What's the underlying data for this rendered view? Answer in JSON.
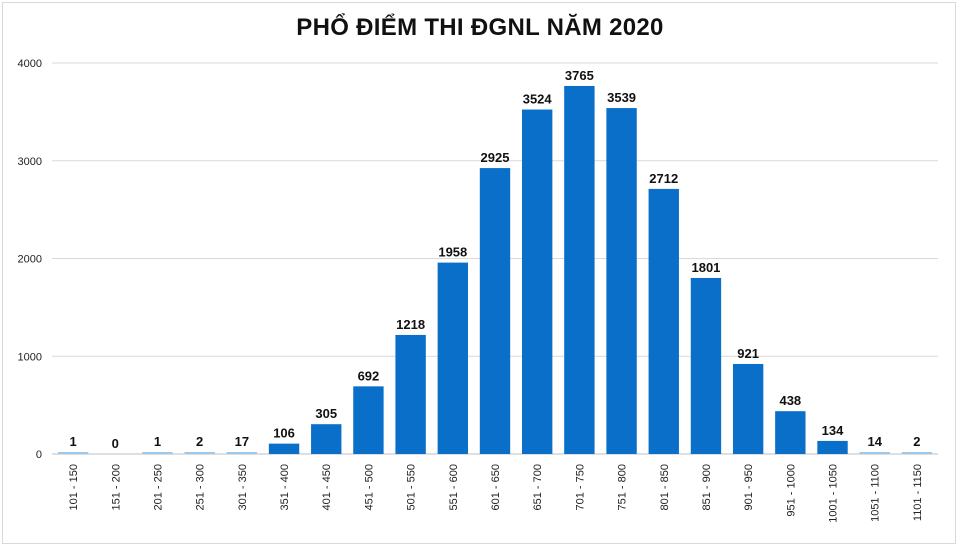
{
  "chart_data": {
    "type": "bar",
    "title": "PHỔ ĐIỂM THI ĐGNL NĂM 2020",
    "xlabel": "",
    "ylabel": "",
    "ylim": [
      0,
      4000
    ],
    "yticks": [
      0,
      1000,
      2000,
      3000,
      4000
    ],
    "grid": true,
    "categories": [
      "101 - 150",
      "151 - 200",
      "201 - 250",
      "251 - 300",
      "301 - 350",
      "351 - 400",
      "401 - 450",
      "451 - 500",
      "501 - 550",
      "551 - 600",
      "601 - 650",
      "651 - 700",
      "701 - 750",
      "751 - 800",
      "801 - 850",
      "851 - 900",
      "901 - 950",
      "951 - 1000",
      "1001 - 1050",
      "1051 - 1100",
      "1101 - 1150"
    ],
    "values": [
      1,
      0,
      1,
      2,
      17,
      106,
      305,
      692,
      1218,
      1958,
      2925,
      3524,
      3765,
      3539,
      2712,
      1801,
      921,
      438,
      134,
      14,
      2
    ],
    "bar_color": "#0a6fc9",
    "small_bar_color": "#9cc8ec"
  }
}
